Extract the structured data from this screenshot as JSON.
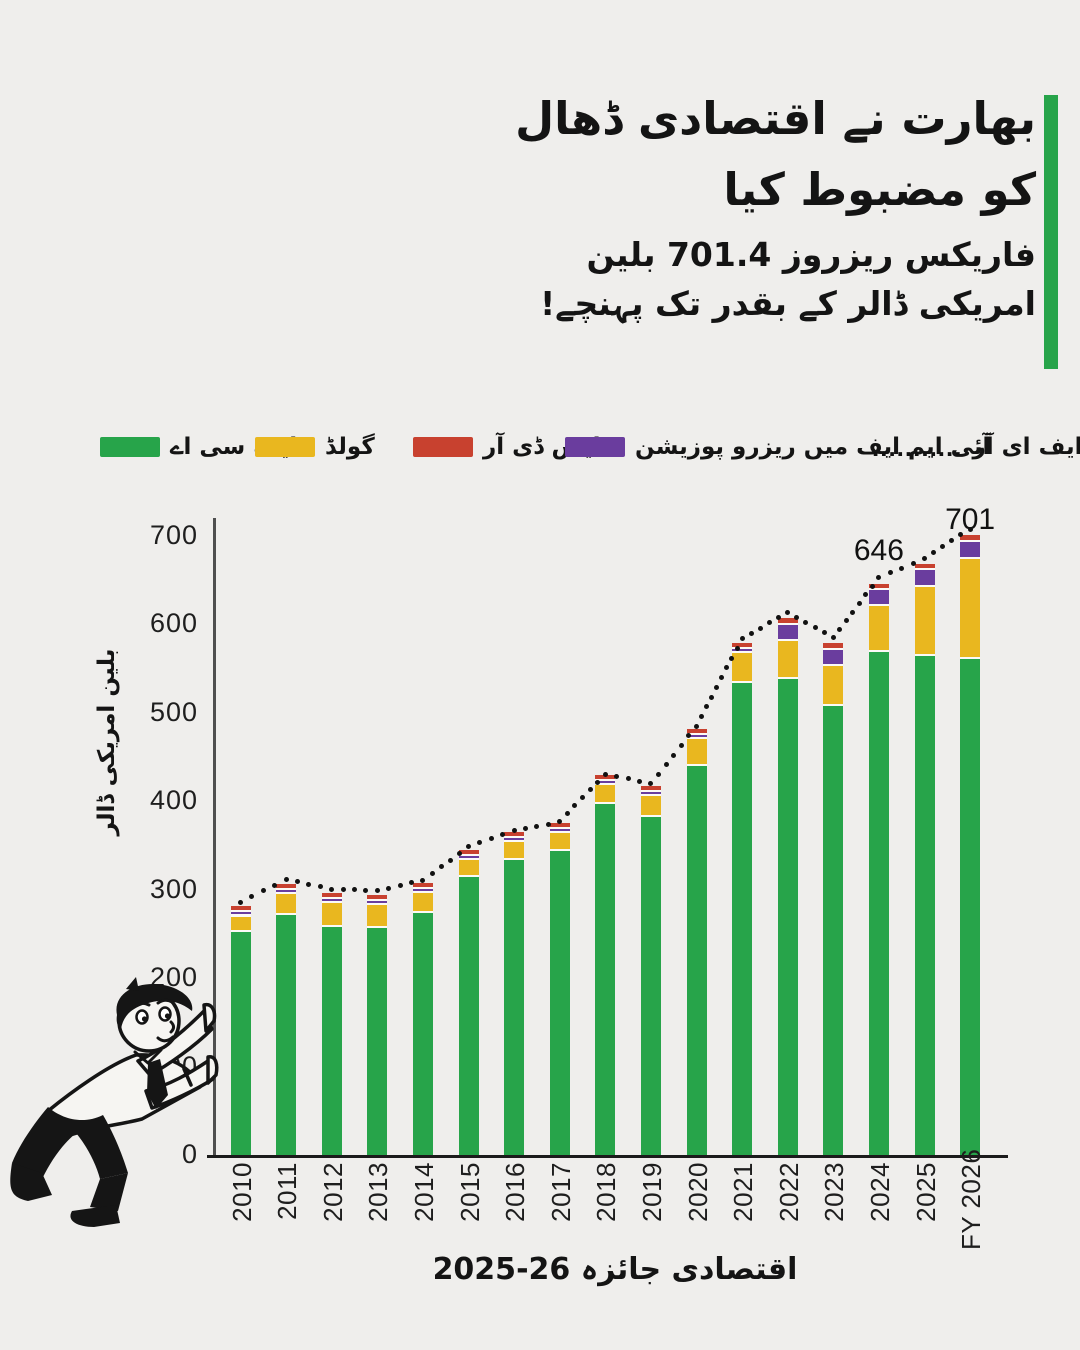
{
  "infographic": {
    "background_color": "#efeeec",
    "accent_color": "#27a44a",
    "title_lines": [
      "بھارت نے اقتصادی ڈھال",
      "کو مضبوط کیا",
      "فاریکس ریزروز 701.4 بلین",
      "امریکی ڈالر کے بقدر تک پہنچے!"
    ]
  },
  "legend": {
    "items": [
      {
        "label": "ایف سی اے",
        "swatch": "square",
        "color": "#27a44a"
      },
      {
        "label": "گولڈ",
        "swatch": "square",
        "color": "#e9b71f"
      },
      {
        "label": "ایس ڈی آر",
        "swatch": "square",
        "color": "#c8412f"
      },
      {
        "label": "آئی ایم ایف میں ریزرو پوزیشن",
        "swatch": "square",
        "color": "#6a3d9e"
      },
      {
        "label": "ایف ای آر",
        "swatch": "dotted-line",
        "color": "#111111",
        "sample": "..........."
      }
    ]
  },
  "chart_data": {
    "type": "bar",
    "stacked": true,
    "grid": false,
    "legend_position": "top",
    "categories": [
      "2010",
      "2011",
      "2012",
      "2013",
      "2014",
      "2015",
      "2016",
      "2017",
      "2018",
      "2019",
      "2020",
      "2021",
      "2022",
      "2023",
      "2024",
      "2025",
      "FY 2026"
    ],
    "series": [
      {
        "name": "ایف سی اے",
        "color": "#27a44a",
        "values": [
          254,
          274,
          260,
          259,
          276,
          317,
          336,
          346,
          399,
          385,
          442,
          536,
          541,
          510,
          571,
          567,
          563
        ]
      },
      {
        "name": "گولڈ",
        "color": "#e9b71f",
        "values": [
          18,
          23,
          27,
          26,
          22,
          19,
          20,
          20,
          22,
          23,
          31,
          34,
          42,
          45,
          52,
          78,
          113
        ]
      },
      {
        "name": "آئی ایم ایف میں ریزرو پوزیشن",
        "color": "#6a3d9e",
        "values": [
          2,
          3,
          2.5,
          2.5,
          2,
          1.5,
          2.5,
          2.5,
          2,
          3,
          3.5,
          5,
          19,
          18.5,
          18,
          18.5,
          20
        ]
      },
      {
        "name": "ایس ڈی آر",
        "color": "#c8412f",
        "values": [
          5,
          5,
          4.5,
          4.5,
          4.5,
          4,
          1.5,
          1.5,
          1.5,
          1.5,
          1.5,
          1.5,
          5,
          5,
          5,
          4.5,
          5.4
        ]
      }
    ],
    "line": {
      "name": "ایف ای آر",
      "style": "dotted",
      "color": "#111111",
      "values": [
        279,
        305,
        294,
        292,
        304,
        342,
        360,
        370,
        424,
        413,
        478,
        577,
        607,
        578,
        646,
        668,
        701
      ]
    },
    "annotations": [
      {
        "text": "646",
        "category": "2024"
      },
      {
        "text": "701",
        "category": "FY 2026"
      }
    ],
    "ylabel": "بلین امریکی ڈالر",
    "yticks": [
      0,
      100,
      200,
      300,
      400,
      500,
      600,
      700
    ],
    "ylim": [
      0,
      718
    ],
    "caption": "اقتصادی جائزہ 26-2025"
  }
}
